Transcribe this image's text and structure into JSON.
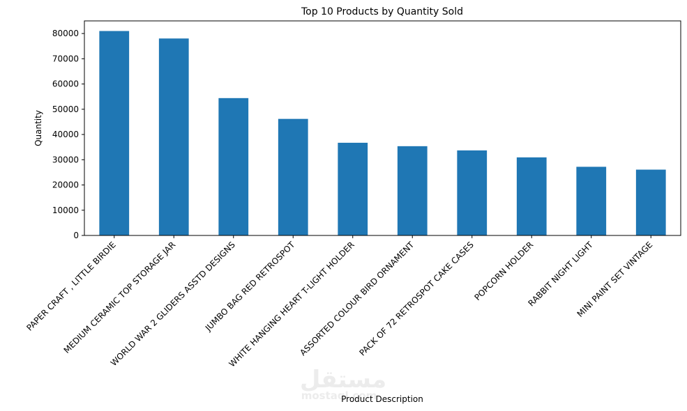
{
  "chart_data": {
    "type": "bar",
    "title": "Top 10 Products by Quantity Sold",
    "xlabel": "Product Description",
    "ylabel": "Quantity",
    "categories": [
      "PAPER CRAFT , LITTLE BIRDIE",
      "MEDIUM CERAMIC TOP STORAGE JAR",
      "WORLD WAR 2 GLIDERS ASSTD DESIGNS",
      "JUMBO BAG RED RETROSPOT",
      "WHITE HANGING HEART T-LIGHT HOLDER",
      "ASSORTED COLOUR BIRD ORNAMENT",
      "PACK OF 72 RETROSPOT CAKE CASES",
      "POPCORN HOLDER",
      "RABBIT NIGHT LIGHT",
      "MINI PAINT SET VINTAGE"
    ],
    "values": [
      80995,
      78033,
      54415,
      46181,
      36725,
      35362,
      33693,
      30931,
      27202,
      26076
    ],
    "yticks": [
      "0",
      "10000",
      "20000",
      "30000",
      "40000",
      "50000",
      "60000",
      "70000",
      "80000"
    ],
    "ylim": [
      0,
      85000
    ],
    "grid": false,
    "bar_color": "#1f77b4"
  },
  "watermark": {
    "arabic": "مستقل",
    "latin": "mostaql.com"
  }
}
